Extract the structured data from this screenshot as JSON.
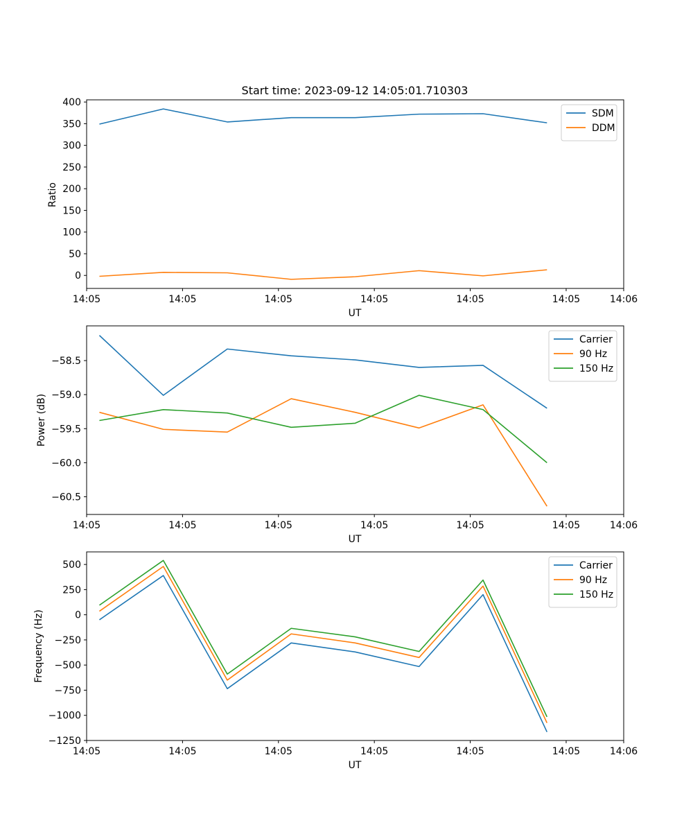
{
  "colors": {
    "c0": "#1f77b4",
    "c1": "#ff7f0e",
    "c2": "#2ca02c"
  },
  "chart_data": [
    {
      "type": "line",
      "title": "Start time: 2023-09-12 14:05:01.710303",
      "xlabel": "UT",
      "ylabel": "Ratio",
      "x": [
        1,
        2,
        3,
        4,
        5,
        6,
        7,
        8
      ],
      "xlim": [
        0.8,
        9.2
      ],
      "xticks": [
        0.8,
        2.3,
        3.8,
        5.3,
        6.8,
        8.3,
        9.2
      ],
      "xtick_labels": [
        "14:05",
        "14:05",
        "14:05",
        "14:05",
        "14:05",
        "14:05",
        "14:06"
      ],
      "ylim": [
        -30,
        405
      ],
      "yticks": [
        0,
        50,
        100,
        150,
        200,
        250,
        300,
        350,
        400
      ],
      "ytick_labels": [
        "0",
        "50",
        "100",
        "150",
        "200",
        "250",
        "300",
        "350",
        "400"
      ],
      "legend_loc": "top-right",
      "series": [
        {
          "name": "SDM",
          "color": "#1f77b4",
          "values": [
            349,
            384,
            354,
            364,
            364,
            372,
            373,
            352
          ]
        },
        {
          "name": "DDM",
          "color": "#ff7f0e",
          "values": [
            -2,
            7,
            6,
            -9,
            -3,
            11,
            -1,
            13
          ]
        }
      ]
    },
    {
      "type": "line",
      "title": "",
      "xlabel": "UT",
      "ylabel": "Power (dB)",
      "x": [
        1,
        2,
        3,
        4,
        5,
        6,
        7,
        8
      ],
      "xlim": [
        0.8,
        9.2
      ],
      "xticks": [
        0.8,
        2.3,
        3.8,
        5.3,
        6.8,
        8.3,
        9.2
      ],
      "xtick_labels": [
        "14:05",
        "14:05",
        "14:05",
        "14:05",
        "14:05",
        "14:05",
        "14:06"
      ],
      "ylim": [
        -60.76,
        -57.99
      ],
      "yticks": [
        -58.5,
        -59.0,
        -59.5,
        -60.0,
        -60.5
      ],
      "ytick_labels": [
        "−58.5",
        "−59.0",
        "−59.5",
        "−60.0",
        "−60.5"
      ],
      "legend_loc": "top-right",
      "series": [
        {
          "name": "Carrier",
          "color": "#1f77b4",
          "values": [
            -58.13,
            -59.01,
            -58.33,
            -58.43,
            -58.49,
            -58.6,
            -58.57,
            -59.2
          ]
        },
        {
          "name": "90 Hz",
          "color": "#ff7f0e",
          "values": [
            -59.26,
            -59.51,
            -59.55,
            -59.06,
            -59.26,
            -59.49,
            -59.15,
            -60.64
          ]
        },
        {
          "name": "150 Hz",
          "color": "#2ca02c",
          "values": [
            -59.38,
            -59.22,
            -59.27,
            -59.48,
            -59.42,
            -59.01,
            -59.22,
            -60.0
          ]
        }
      ]
    },
    {
      "type": "line",
      "title": "",
      "xlabel": "UT",
      "ylabel": "Frequency (Hz)",
      "x": [
        1,
        2,
        3,
        4,
        5,
        6,
        7,
        8
      ],
      "xlim": [
        0.8,
        9.2
      ],
      "xticks": [
        0.8,
        2.3,
        3.8,
        5.3,
        6.8,
        8.3,
        9.2
      ],
      "xtick_labels": [
        "14:05",
        "14:05",
        "14:05",
        "14:05",
        "14:05",
        "14:05",
        "14:06"
      ],
      "ylim": [
        -1250,
        625
      ],
      "yticks": [
        500,
        250,
        0,
        -250,
        -500,
        -750,
        -1000,
        -1250
      ],
      "ytick_labels": [
        "500",
        "250",
        "0",
        "−250",
        "−500",
        "−750",
        "−1000",
        "−1250"
      ],
      "legend_loc": "top-right",
      "series": [
        {
          "name": "Carrier",
          "color": "#1f77b4",
          "values": [
            -50,
            390,
            -735,
            -280,
            -370,
            -515,
            200,
            -1165
          ]
        },
        {
          "name": "90 Hz",
          "color": "#ff7f0e",
          "values": [
            35,
            480,
            -650,
            -190,
            -280,
            -425,
            285,
            -1075
          ]
        },
        {
          "name": "150 Hz",
          "color": "#2ca02c",
          "values": [
            95,
            540,
            -590,
            -135,
            -220,
            -365,
            345,
            -1015
          ]
        }
      ]
    }
  ]
}
